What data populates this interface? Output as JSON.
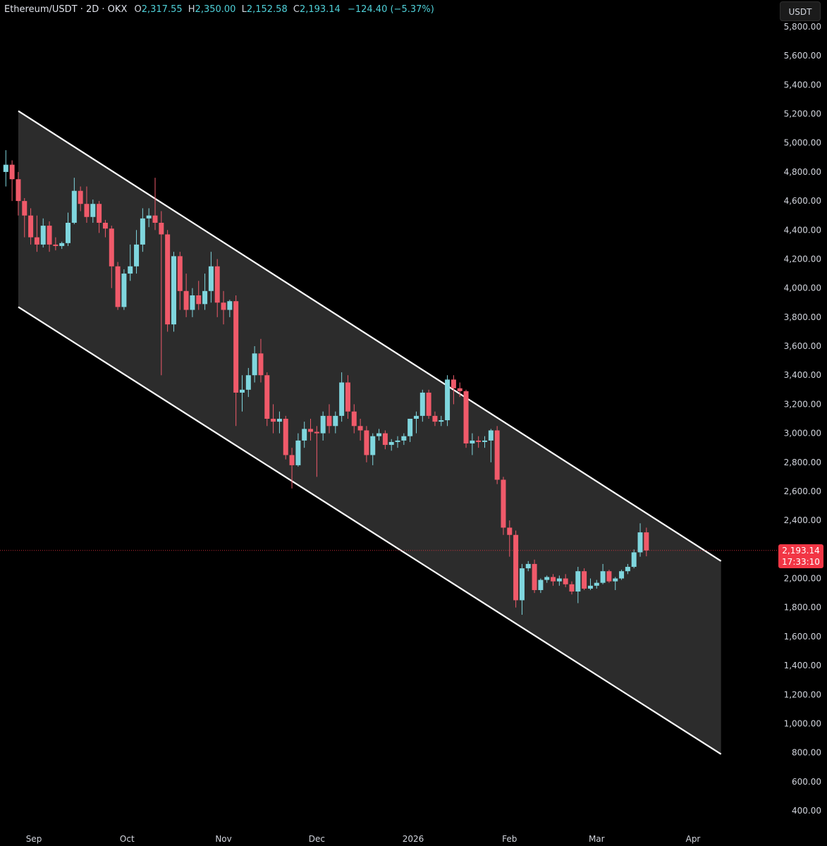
{
  "header": {
    "symbol": "Ethereum/USDT · 2D · OKX",
    "open_label": "O",
    "open": "2,317.55",
    "high_label": "H",
    "high": "2,350.00",
    "low_label": "L",
    "low": "2,152.58",
    "close_label": "C",
    "close": "2,193.14",
    "change": "−124.40 (−5.37%)"
  },
  "currency_button": "USDT",
  "last_price": {
    "price": "2,193.14",
    "countdown": "17:33:10"
  },
  "colors": {
    "background": "#000000",
    "up_candle": "#7fd6de",
    "down_candle": "#f05a6a",
    "channel_fill": "#2e2e2e",
    "channel_line": "#ffffff",
    "axis_text": "#d1d4dc",
    "price_tag": "#f23645"
  },
  "chart_data": {
    "type": "candlestick",
    "title": "Ethereum/USDT · 2D · OKX",
    "y_ticks": [
      "400.00",
      "600.00",
      "800.00",
      "1,000.00",
      "1,200.00",
      "1,400.00",
      "1,600.00",
      "1,800.00",
      "2,000.00",
      "2,200.00",
      "2,400.00",
      "2,600.00",
      "2,800.00",
      "3,000.00",
      "3,200.00",
      "3,400.00",
      "3,600.00",
      "3,800.00",
      "4,000.00",
      "4,200.00",
      "4,400.00",
      "4,600.00",
      "4,800.00",
      "5,000.00",
      "5,200.00",
      "5,400.00",
      "5,600.00",
      "5,800.00"
    ],
    "x_ticks": [
      "Sep",
      "Oct",
      "Nov",
      "Dec",
      "2026",
      "Feb",
      "Mar",
      "Apr"
    ],
    "ylim": [
      300,
      5900
    ],
    "channel": {
      "upper": [
        [
          "2025-08-27",
          5220
        ],
        [
          "2026-04-10",
          2120
        ]
      ],
      "lower": [
        [
          "2025-08-27",
          3870
        ],
        [
          "2026-04-10",
          790
        ]
      ]
    },
    "last_price_line": 2193.14,
    "candles": [
      [
        "2025-08-23",
        4800,
        4950,
        4700,
        4850
      ],
      [
        "2025-08-25",
        4850,
        4880,
        4600,
        4750
      ],
      [
        "2025-08-27",
        4750,
        4800,
        4500,
        4600
      ],
      [
        "2025-08-29",
        4600,
        4620,
        4350,
        4500
      ],
      [
        "2025-08-31",
        4500,
        4550,
        4300,
        4350
      ],
      [
        "2025-09-02",
        4350,
        4500,
        4250,
        4300
      ],
      [
        "2025-09-04",
        4300,
        4480,
        4280,
        4430
      ],
      [
        "2025-09-06",
        4430,
        4460,
        4250,
        4300
      ],
      [
        "2025-09-08",
        4300,
        4350,
        4260,
        4290
      ],
      [
        "2025-09-10",
        4290,
        4320,
        4270,
        4310
      ],
      [
        "2025-09-12",
        4310,
        4520,
        4290,
        4450
      ],
      [
        "2025-09-14",
        4450,
        4760,
        4440,
        4670
      ],
      [
        "2025-09-16",
        4670,
        4700,
        4530,
        4580
      ],
      [
        "2025-09-18",
        4580,
        4700,
        4450,
        4490
      ],
      [
        "2025-09-20",
        4490,
        4610,
        4450,
        4580
      ],
      [
        "2025-09-22",
        4580,
        4600,
        4380,
        4450
      ],
      [
        "2025-09-24",
        4450,
        4470,
        4350,
        4410
      ],
      [
        "2025-09-26",
        4410,
        4430,
        4000,
        4150
      ],
      [
        "2025-09-28",
        4150,
        4180,
        3850,
        3870
      ],
      [
        "2025-09-30",
        3870,
        4130,
        3850,
        4100
      ],
      [
        "2025-10-02",
        4100,
        4300,
        4050,
        4150
      ],
      [
        "2025-10-04",
        4150,
        4400,
        4100,
        4300
      ],
      [
        "2025-10-06",
        4300,
        4550,
        4250,
        4480
      ],
      [
        "2025-10-08",
        4480,
        4550,
        4420,
        4500
      ],
      [
        "2025-10-10",
        4500,
        4760,
        4400,
        4450
      ],
      [
        "2025-10-12",
        4450,
        4530,
        3400,
        4370
      ],
      [
        "2025-10-14",
        4370,
        4400,
        3700,
        3750
      ],
      [
        "2025-10-16",
        3750,
        4250,
        3700,
        4220
      ],
      [
        "2025-10-18",
        4220,
        4250,
        3850,
        3980
      ],
      [
        "2025-10-20",
        3980,
        4100,
        3800,
        3850
      ],
      [
        "2025-10-22",
        3850,
        4000,
        3800,
        3950
      ],
      [
        "2025-10-24",
        3950,
        4050,
        3850,
        3890
      ],
      [
        "2025-10-26",
        3890,
        4100,
        3850,
        3980
      ],
      [
        "2025-10-28",
        3980,
        4250,
        3900,
        4150
      ],
      [
        "2025-10-30",
        4150,
        4200,
        3800,
        3900
      ],
      [
        "2025-11-01",
        3900,
        3980,
        3750,
        3850
      ],
      [
        "2025-11-03",
        3850,
        3920,
        3800,
        3910
      ],
      [
        "2025-11-05",
        3910,
        3950,
        3050,
        3280
      ],
      [
        "2025-11-07",
        3280,
        3400,
        3150,
        3300
      ],
      [
        "2025-11-09",
        3300,
        3450,
        3250,
        3400
      ],
      [
        "2025-11-11",
        3400,
        3600,
        3350,
        3550
      ],
      [
        "2025-11-13",
        3550,
        3650,
        3350,
        3400
      ],
      [
        "2025-11-15",
        3400,
        3420,
        3050,
        3100
      ],
      [
        "2025-11-17",
        3100,
        3200,
        3000,
        3080
      ],
      [
        "2025-11-19",
        3080,
        3150,
        3000,
        3100
      ],
      [
        "2025-11-21",
        3100,
        3120,
        2820,
        2850
      ],
      [
        "2025-11-23",
        2850,
        2900,
        2620,
        2780
      ],
      [
        "2025-11-25",
        2780,
        3000,
        2770,
        2950
      ],
      [
        "2025-11-27",
        2950,
        3080,
        2900,
        3030
      ],
      [
        "2025-11-29",
        3030,
        3100,
        2950,
        3010
      ],
      [
        "2025-12-01",
        3010,
        3050,
        2700,
        3000
      ],
      [
        "2025-12-03",
        3000,
        3150,
        2950,
        3120
      ],
      [
        "2025-12-05",
        3120,
        3200,
        3000,
        3050
      ],
      [
        "2025-12-07",
        3050,
        3150,
        3000,
        3120
      ],
      [
        "2025-12-09",
        3120,
        3420,
        3080,
        3350
      ],
      [
        "2025-12-11",
        3350,
        3400,
        3100,
        3150
      ],
      [
        "2025-12-13",
        3150,
        3200,
        3000,
        3050
      ],
      [
        "2025-12-15",
        3050,
        3100,
        2950,
        3020
      ],
      [
        "2025-12-17",
        3020,
        3050,
        2800,
        2850
      ],
      [
        "2025-12-19",
        2850,
        3000,
        2780,
        2980
      ],
      [
        "2025-12-21",
        2980,
        3030,
        2950,
        3000
      ],
      [
        "2025-12-23",
        3000,
        3020,
        2890,
        2920
      ],
      [
        "2025-12-25",
        2920,
        2960,
        2880,
        2940
      ],
      [
        "2025-12-27",
        2940,
        2980,
        2900,
        2950
      ],
      [
        "2025-12-29",
        2950,
        3000,
        2920,
        2980
      ],
      [
        "2025-12-31",
        2980,
        3050,
        2940,
        3100
      ],
      [
        "2026-01-02",
        3100,
        3150,
        3000,
        3120
      ],
      [
        "2026-01-04",
        3120,
        3300,
        3080,
        3280
      ],
      [
        "2026-01-06",
        3280,
        3300,
        3100,
        3120
      ],
      [
        "2026-01-08",
        3120,
        3150,
        3050,
        3080
      ],
      [
        "2026-01-10",
        3080,
        3120,
        3050,
        3090
      ],
      [
        "2026-01-12",
        3090,
        3400,
        3050,
        3370
      ],
      [
        "2026-01-14",
        3370,
        3400,
        3200,
        3310
      ],
      [
        "2026-01-16",
        3310,
        3350,
        3250,
        3290
      ],
      [
        "2026-01-18",
        3290,
        3300,
        2900,
        2930
      ],
      [
        "2026-01-20",
        2930,
        3000,
        2850,
        2950
      ],
      [
        "2026-01-22",
        2950,
        2980,
        2900,
        2940
      ],
      [
        "2026-01-24",
        2940,
        2980,
        2900,
        2950
      ],
      [
        "2026-01-26",
        2950,
        3030,
        2800,
        3020
      ],
      [
        "2026-01-28",
        3020,
        3050,
        2650,
        2680
      ],
      [
        "2026-01-30",
        2680,
        2700,
        2300,
        2350
      ],
      [
        "2026-02-01",
        2350,
        2400,
        2150,
        2300
      ],
      [
        "2026-02-03",
        2300,
        2330,
        1800,
        1850
      ],
      [
        "2026-02-05",
        1850,
        2100,
        1750,
        2070
      ],
      [
        "2026-02-07",
        2070,
        2120,
        2050,
        2100
      ],
      [
        "2026-02-09",
        2100,
        2130,
        1900,
        1920
      ],
      [
        "2026-02-11",
        1920,
        2000,
        1900,
        1990
      ],
      [
        "2026-02-13",
        1990,
        2020,
        1970,
        2010
      ],
      [
        "2026-02-15",
        2010,
        2030,
        1950,
        1980
      ],
      [
        "2026-02-17",
        1980,
        2020,
        1950,
        2000
      ],
      [
        "2026-02-19",
        2000,
        2030,
        1940,
        1960
      ],
      [
        "2026-02-21",
        1960,
        1980,
        1890,
        1910
      ],
      [
        "2026-02-23",
        1910,
        2080,
        1830,
        2050
      ],
      [
        "2026-02-25",
        2050,
        2070,
        1920,
        1930
      ],
      [
        "2026-02-27",
        1930,
        2000,
        1920,
        1950
      ],
      [
        "2026-03-01",
        1950,
        1990,
        1930,
        1970
      ],
      [
        "2026-03-03",
        1970,
        2100,
        1960,
        2050
      ],
      [
        "2026-03-05",
        2050,
        2060,
        1970,
        1980
      ],
      [
        "2026-03-07",
        1980,
        2010,
        1920,
        2000
      ],
      [
        "2026-03-09",
        2000,
        2060,
        1990,
        2050
      ],
      [
        "2026-03-11",
        2050,
        2100,
        2030,
        2080
      ],
      [
        "2026-03-13",
        2080,
        2200,
        2070,
        2180
      ],
      [
        "2026-03-15",
        2180,
        2380,
        2150,
        2317.55
      ],
      [
        "2026-03-17",
        2317.55,
        2350,
        2152.58,
        2193.14
      ]
    ]
  }
}
